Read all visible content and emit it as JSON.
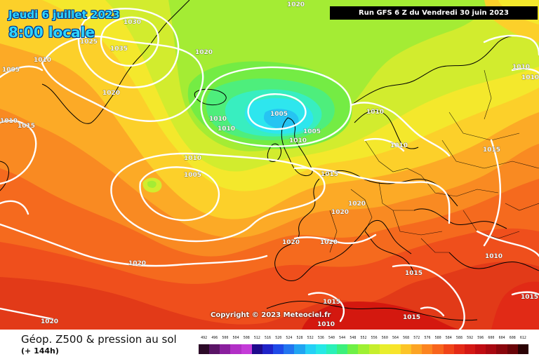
{
  "header": {
    "date": "Jeudi 6 juillet 2023",
    "time": "8:00 locale",
    "run": "Run GFS 6 Z du Vendredi 30 juin 2023"
  },
  "copyright": "Copyright © 2023 Meteociel.fr",
  "footer": {
    "caption": "Géop. Z500 & pression au sol",
    "lead_time": "(+ 144h)"
  },
  "isobar_labels": [
    "1030",
    "1025",
    "1035",
    "1010",
    "1005",
    "1020",
    "1020",
    "1020",
    "1010",
    "1015",
    "1010",
    "1010",
    "1005",
    "1010",
    "1010",
    "1010",
    "1005",
    "1015",
    "1020",
    "1020",
    "1020",
    "1020",
    "1020",
    "1015",
    "1010",
    "1015",
    "1015",
    "1010",
    "1005",
    "1010",
    "1010",
    "1020",
    "1015",
    "1010",
    "1015"
  ],
  "legend": {
    "labels": [
      "492",
      "496",
      "500",
      "504",
      "508",
      "512",
      "516",
      "520",
      "524",
      "528",
      "532",
      "536",
      "540",
      "544",
      "548",
      "552",
      "556",
      "560",
      "564",
      "568",
      "572",
      "576",
      "580",
      "584",
      "588",
      "592",
      "596",
      "600",
      "604",
      "608",
      "612"
    ],
    "colors": [
      "#2c0a28",
      "#5a1466",
      "#8a1f9e",
      "#b22fc6",
      "#c43bd8",
      "#1e0a8c",
      "#1f23c8",
      "#1f4ae8",
      "#2275f0",
      "#20a4f2",
      "#25d0f6",
      "#26e8e6",
      "#2af0b8",
      "#3cf07c",
      "#6ef046",
      "#9ef032",
      "#c6ee2c",
      "#e8ee2c",
      "#f8e42a",
      "#fcc426",
      "#fca424",
      "#fc8420",
      "#f8641c",
      "#f04418",
      "#e42a16",
      "#d41814",
      "#c00c12",
      "#a80810",
      "#8a060c",
      "#6a0408",
      "#2a0204"
    ]
  }
}
